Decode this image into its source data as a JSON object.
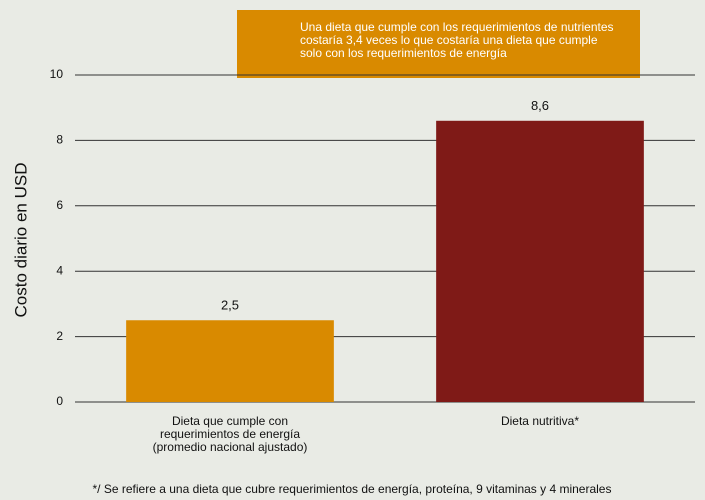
{
  "chart_data": {
    "type": "bar",
    "ylabel": "Costo diario en USD",
    "annotation": "Una dieta que cumple con los requerimientos de nutrientes\ncostaría 3,4 veces lo que costaría una dieta que cumple\nsolo con los requerimientos de energía",
    "categories": [
      "Dieta que cumple con\nrequerimientos de energía\n(promedio nacional ajustado)",
      "Dieta nutritiva*"
    ],
    "values": [
      2.5,
      8.6
    ],
    "value_labels": [
      "2,5",
      "8,6"
    ],
    "colors": [
      "#d98a00",
      "#7f1a17"
    ],
    "ylim": [
      0,
      10
    ],
    "yticks": [
      0,
      2,
      4,
      6,
      8,
      10
    ],
    "grid": true,
    "footnote": "*/ Se refiere a una dieta que cubre requerimientos de energía, proteína, 9 vitaminas y 4 minerales"
  }
}
